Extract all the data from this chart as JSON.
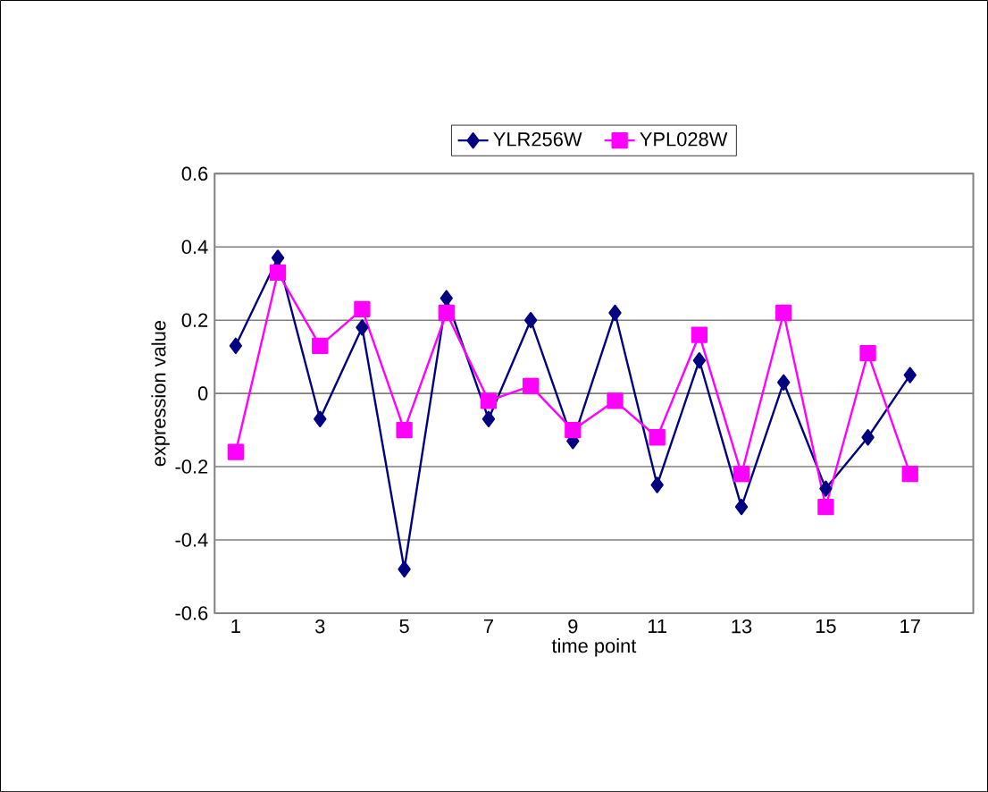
{
  "chart_data": {
    "type": "line",
    "xlabel": "time point",
    "ylabel": "expression value",
    "x": [
      1,
      2,
      3,
      4,
      5,
      6,
      7,
      8,
      9,
      10,
      11,
      12,
      13,
      14,
      15,
      16,
      17
    ],
    "series": [
      {
        "name": "YLR256W",
        "color": "#000080",
        "marker": "diamond",
        "values": [
          0.13,
          0.37,
          -0.07,
          0.18,
          -0.48,
          0.26,
          -0.07,
          0.2,
          -0.13,
          0.22,
          -0.25,
          0.09,
          -0.31,
          0.03,
          -0.26,
          -0.12,
          0.05
        ]
      },
      {
        "name": "YPL028W",
        "color": "#ff00ff",
        "marker": "square",
        "values": [
          -0.16,
          0.33,
          0.13,
          0.23,
          -0.1,
          0.22,
          -0.02,
          0.02,
          -0.1,
          -0.02,
          -0.12,
          0.16,
          -0.22,
          0.22,
          -0.31,
          0.11,
          -0.22
        ]
      }
    ],
    "xlim": [
      0.5,
      18.5
    ],
    "xticks": [
      1,
      3,
      5,
      7,
      9,
      11,
      13,
      15,
      17
    ],
    "ylim": [
      -0.6,
      0.6
    ],
    "yticks": [
      -0.6,
      -0.4,
      -0.2,
      0,
      0.2,
      0.4,
      0.6
    ],
    "grid": "y",
    "legend": "top"
  }
}
